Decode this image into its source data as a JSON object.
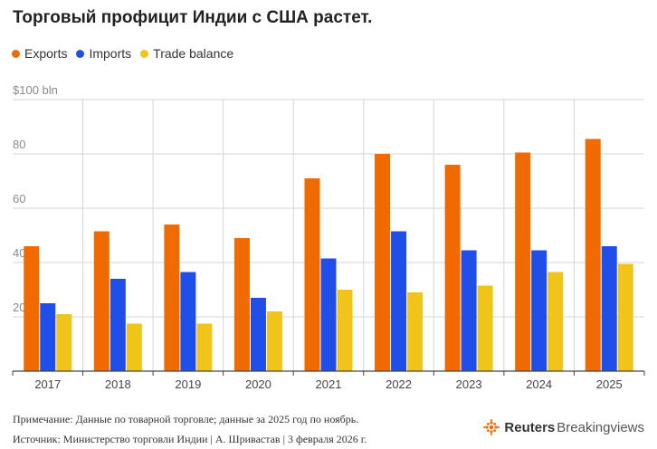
{
  "title": "Торговый профицит Индии с США растет.",
  "legend": [
    {
      "label": "Exports",
      "color": "#f06a00"
    },
    {
      "label": "Imports",
      "color": "#1f4fe8"
    },
    {
      "label": "Trade balance",
      "color": "#f0c419"
    }
  ],
  "chart_data": {
    "type": "bar",
    "categories": [
      "2017",
      "2018",
      "2019",
      "2020",
      "2021",
      "2022",
      "2023",
      "2024",
      "2025"
    ],
    "series": [
      {
        "name": "Exports",
        "color": "#f06a00",
        "values": [
          46,
          51.5,
          54,
          49,
          71,
          80,
          76,
          80.5,
          85.5
        ]
      },
      {
        "name": "Imports",
        "color": "#1f4fe8",
        "values": [
          25,
          34,
          36.5,
          27,
          41.5,
          51.5,
          44.5,
          44.5,
          46
        ]
      },
      {
        "name": "Trade balance",
        "color": "#f0c419",
        "values": [
          21,
          17.5,
          17.5,
          22,
          30,
          29,
          31.5,
          36.5,
          39.5
        ]
      }
    ],
    "yticks": [
      "20",
      "40",
      "60",
      "80",
      "$100 bln"
    ],
    "ytick_values": [
      20,
      40,
      60,
      80,
      100
    ],
    "ylim": [
      0,
      100
    ],
    "grid": true,
    "legend_position": "top-left"
  },
  "footer": {
    "note": "Примечание: Данные по товарной торговле; данные за 2025 год по ноябрь.",
    "source": "Источник: Министерство торговли Индии | А. Шривастав | 3 февраля 2026 г."
  },
  "brand": {
    "name_bold": "Reuters",
    "name_light": "Breakingviews",
    "logo_color": "#f06a00"
  }
}
